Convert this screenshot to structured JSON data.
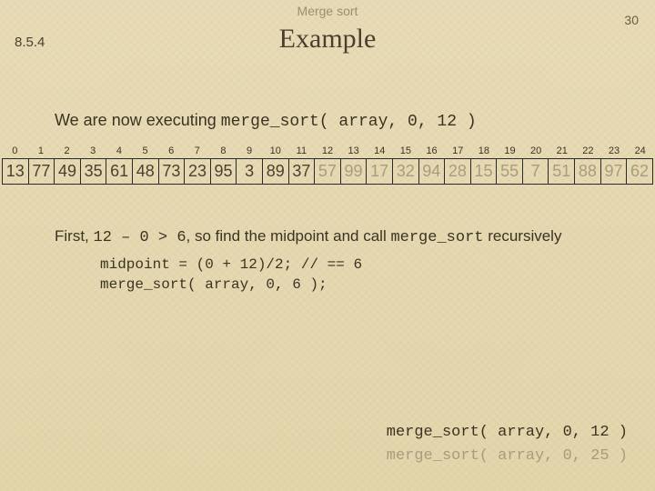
{
  "header": {
    "label": "Merge sort",
    "page": "30",
    "section": "8.5.4",
    "title": "Example"
  },
  "intro": {
    "prefix": "We are now executing ",
    "call": "merge_sort( array, 0, 12 )"
  },
  "array": {
    "indices": [
      "0",
      "1",
      "2",
      "3",
      "4",
      "5",
      "6",
      "7",
      "8",
      "9",
      "10",
      "11",
      "12",
      "13",
      "14",
      "15",
      "16",
      "17",
      "18",
      "19",
      "20",
      "21",
      "22",
      "23",
      "24"
    ],
    "values": [
      "13",
      "77",
      "49",
      "35",
      "61",
      "48",
      "73",
      "23",
      "95",
      "3",
      "89",
      "37",
      "57",
      "99",
      "17",
      "32",
      "94",
      "28",
      "15",
      "55",
      "7",
      "51",
      "88",
      "97",
      "62"
    ],
    "active_upto_index": 11,
    "colors": {
      "active": "#3b3322",
      "dim": "#a89c7e",
      "border": "#2a2a2a"
    }
  },
  "explain": {
    "p1a": "First, ",
    "p1mono": "12 – 0 > 6",
    "p1b": ", so find the midpoint and call ",
    "p1call": "merge_sort",
    "p1c": " recursively",
    "code_l1": "midpoint = (0 + 12)/2; // == 6",
    "code_l2": "merge_sort( array, 0, 6 );"
  },
  "stack": {
    "line1": "merge_sort( array,  0, 12 )",
    "line2": "merge_sort( array,  0, 25 )"
  },
  "style": {
    "bg": "#e8dcb8",
    "text": "#3b3322",
    "muted": "#a89c7e",
    "title_fontsize": 30,
    "body_fontsize": 17,
    "mono_family": "Courier New"
  }
}
